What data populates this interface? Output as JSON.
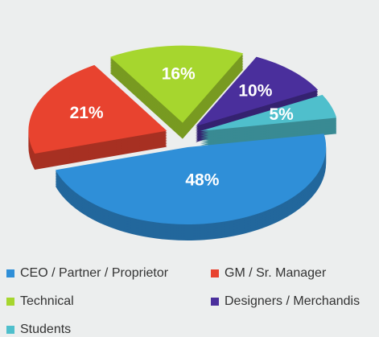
{
  "chart_data": {
    "type": "pie",
    "categories": [
      "CEO / Partner / Proprietor",
      "GM / Sr. Manager",
      "Technical",
      "Designers / Merchandis",
      "Students"
    ],
    "values": [
      48,
      21,
      16,
      10,
      5
    ],
    "value_labels": [
      "48%",
      "21%",
      "16%",
      "10%",
      "5%"
    ],
    "colors": [
      "#2f8fd8",
      "#e8432f",
      "#a6d62e",
      "#4a2f9c",
      "#4fbfcc"
    ]
  }
}
